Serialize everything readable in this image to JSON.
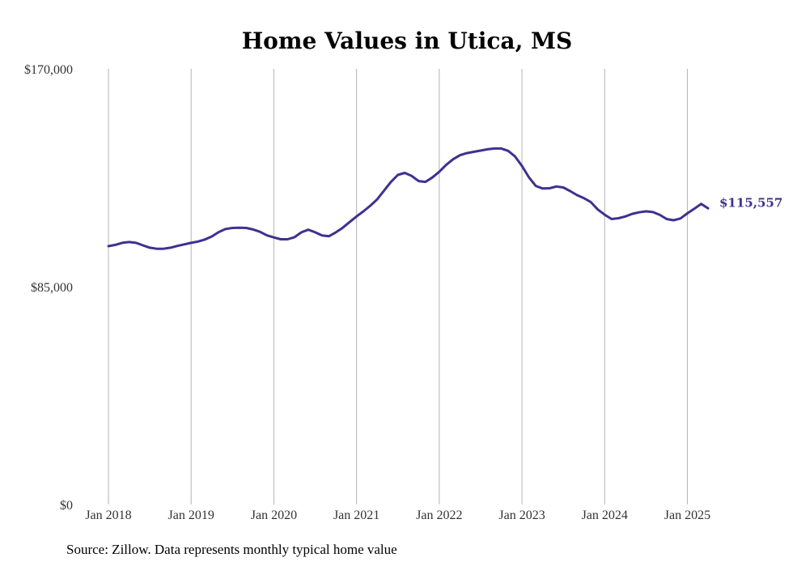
{
  "chart_data": {
    "type": "line",
    "title": "Home Values in Utica, MS",
    "source": "Source: Zillow. Data represents monthly typical home value",
    "y_ticks": [
      {
        "value": 170000,
        "label": "$170,000"
      },
      {
        "value": 85000,
        "label": "$85,000"
      },
      {
        "value": 0,
        "label": "$0"
      }
    ],
    "x_ticks": [
      {
        "value": "2018-01",
        "label": "Jan 2018"
      },
      {
        "value": "2019-01",
        "label": "Jan 2019"
      },
      {
        "value": "2020-01",
        "label": "Jan 2020"
      },
      {
        "value": "2021-01",
        "label": "Jan 2021"
      },
      {
        "value": "2022-01",
        "label": "Jan 2022"
      },
      {
        "value": "2023-01",
        "label": "Jan 2023"
      },
      {
        "value": "2024-01",
        "label": "Jan 2024"
      },
      {
        "value": "2025-01",
        "label": "Jan 2025"
      }
    ],
    "ylim": [
      0,
      170000
    ],
    "xlim": [
      "2018-01",
      "2025-04"
    ],
    "grid": "vertical",
    "line_color": "#3d3290",
    "end_label": "$115,557",
    "series": [
      {
        "x": [
          "2018-01",
          "2018-02",
          "2018-03",
          "2018-04",
          "2018-05",
          "2018-06",
          "2018-07",
          "2018-08",
          "2018-09",
          "2018-10",
          "2018-11",
          "2018-12",
          "2019-01",
          "2019-02",
          "2019-03",
          "2019-04",
          "2019-05",
          "2019-06",
          "2019-07",
          "2019-08",
          "2019-09",
          "2019-10",
          "2019-11",
          "2019-12",
          "2020-01",
          "2020-02",
          "2020-03",
          "2020-04",
          "2020-05",
          "2020-06",
          "2020-07",
          "2020-08",
          "2020-09",
          "2020-10",
          "2020-11",
          "2020-12",
          "2021-01",
          "2021-02",
          "2021-03",
          "2021-04",
          "2021-05",
          "2021-06",
          "2021-07",
          "2021-08",
          "2021-09",
          "2021-10",
          "2021-11",
          "2021-12",
          "2022-01",
          "2022-02",
          "2022-03",
          "2022-04",
          "2022-05",
          "2022-06",
          "2022-07",
          "2022-08",
          "2022-09",
          "2022-10",
          "2022-11",
          "2022-12",
          "2023-01",
          "2023-02",
          "2023-03",
          "2023-04",
          "2023-05",
          "2023-06",
          "2023-07",
          "2023-08",
          "2023-09",
          "2023-10",
          "2023-11",
          "2023-12",
          "2024-01",
          "2024-02",
          "2024-03",
          "2024-04",
          "2024-05",
          "2024-06",
          "2024-07",
          "2024-08",
          "2024-09",
          "2024-10",
          "2024-11",
          "2024-12",
          "2025-01",
          "2025-02",
          "2025-03",
          "2025-04"
        ],
        "values": [
          100800,
          101300,
          102100,
          102400,
          102100,
          101100,
          100200,
          99800,
          99800,
          100200,
          100900,
          101500,
          102100,
          102600,
          103400,
          104600,
          106300,
          107500,
          107900,
          108000,
          107900,
          107300,
          106400,
          105000,
          104200,
          103500,
          103500,
          104300,
          106200,
          107200,
          106200,
          105000,
          104700,
          106200,
          108000,
          110200,
          112400,
          114400,
          116600,
          119100,
          122500,
          125900,
          128600,
          129400,
          128200,
          126200,
          125900,
          127600,
          129800,
          132500,
          134700,
          136300,
          137100,
          137600,
          138100,
          138600,
          138900,
          138900,
          138000,
          135800,
          132100,
          127700,
          124300,
          123300,
          123400,
          124100,
          123700,
          122300,
          120700,
          119500,
          118000,
          115100,
          113100,
          111400,
          111700,
          112400,
          113400,
          114000,
          114400,
          114100,
          113000,
          111400,
          110900,
          111600,
          113600,
          115400,
          117300,
          115557
        ]
      }
    ]
  }
}
